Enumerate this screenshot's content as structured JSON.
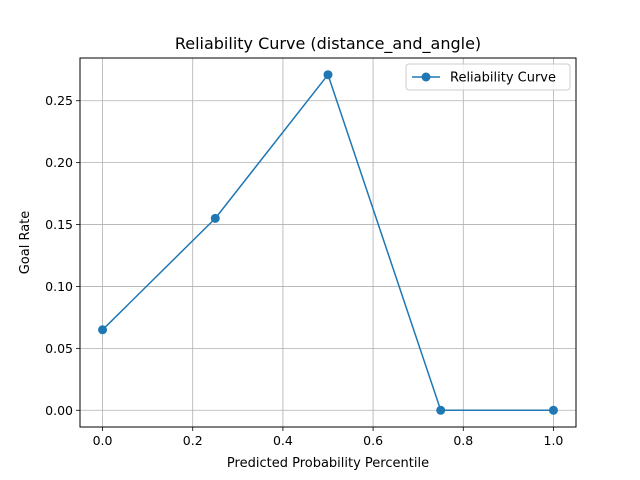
{
  "chart_data": {
    "type": "line",
    "title": "Reliability Curve (distance_and_angle)",
    "xlabel": "Predicted Probability Percentile",
    "ylabel": "Goal Rate",
    "xlim": [
      -0.05,
      1.05
    ],
    "ylim": [
      -0.0135,
      0.2845
    ],
    "x_ticks": [
      0.0,
      0.2,
      0.4,
      0.6,
      0.8,
      1.0
    ],
    "x_tick_labels": [
      "0.0",
      "0.2",
      "0.4",
      "0.6",
      "0.8",
      "1.0"
    ],
    "y_ticks": [
      0.0,
      0.05,
      0.1,
      0.15,
      0.2,
      0.25
    ],
    "y_tick_labels": [
      "0.00",
      "0.05",
      "0.10",
      "0.15",
      "0.20",
      "0.25"
    ],
    "grid": true,
    "legend_position": "top-right",
    "series": [
      {
        "name": "Reliability Curve",
        "color": "#1f77b4",
        "marker": "circle",
        "x": [
          0.0,
          0.25,
          0.5,
          0.75,
          1.0
        ],
        "y": [
          0.065,
          0.155,
          0.271,
          0.0,
          0.0
        ]
      }
    ]
  }
}
